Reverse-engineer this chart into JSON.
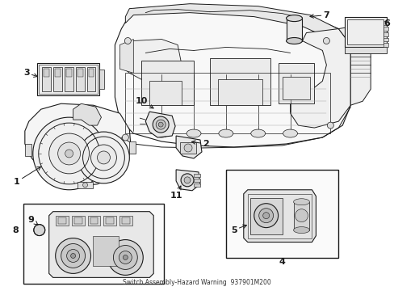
{
  "bg": "#ffffff",
  "lc": "#1a1a1a",
  "lw": 0.8,
  "figsize": [
    4.89,
    3.6
  ],
  "dpi": 100,
  "caption": "Switch Assembly-Hazard Warning  937901M200"
}
